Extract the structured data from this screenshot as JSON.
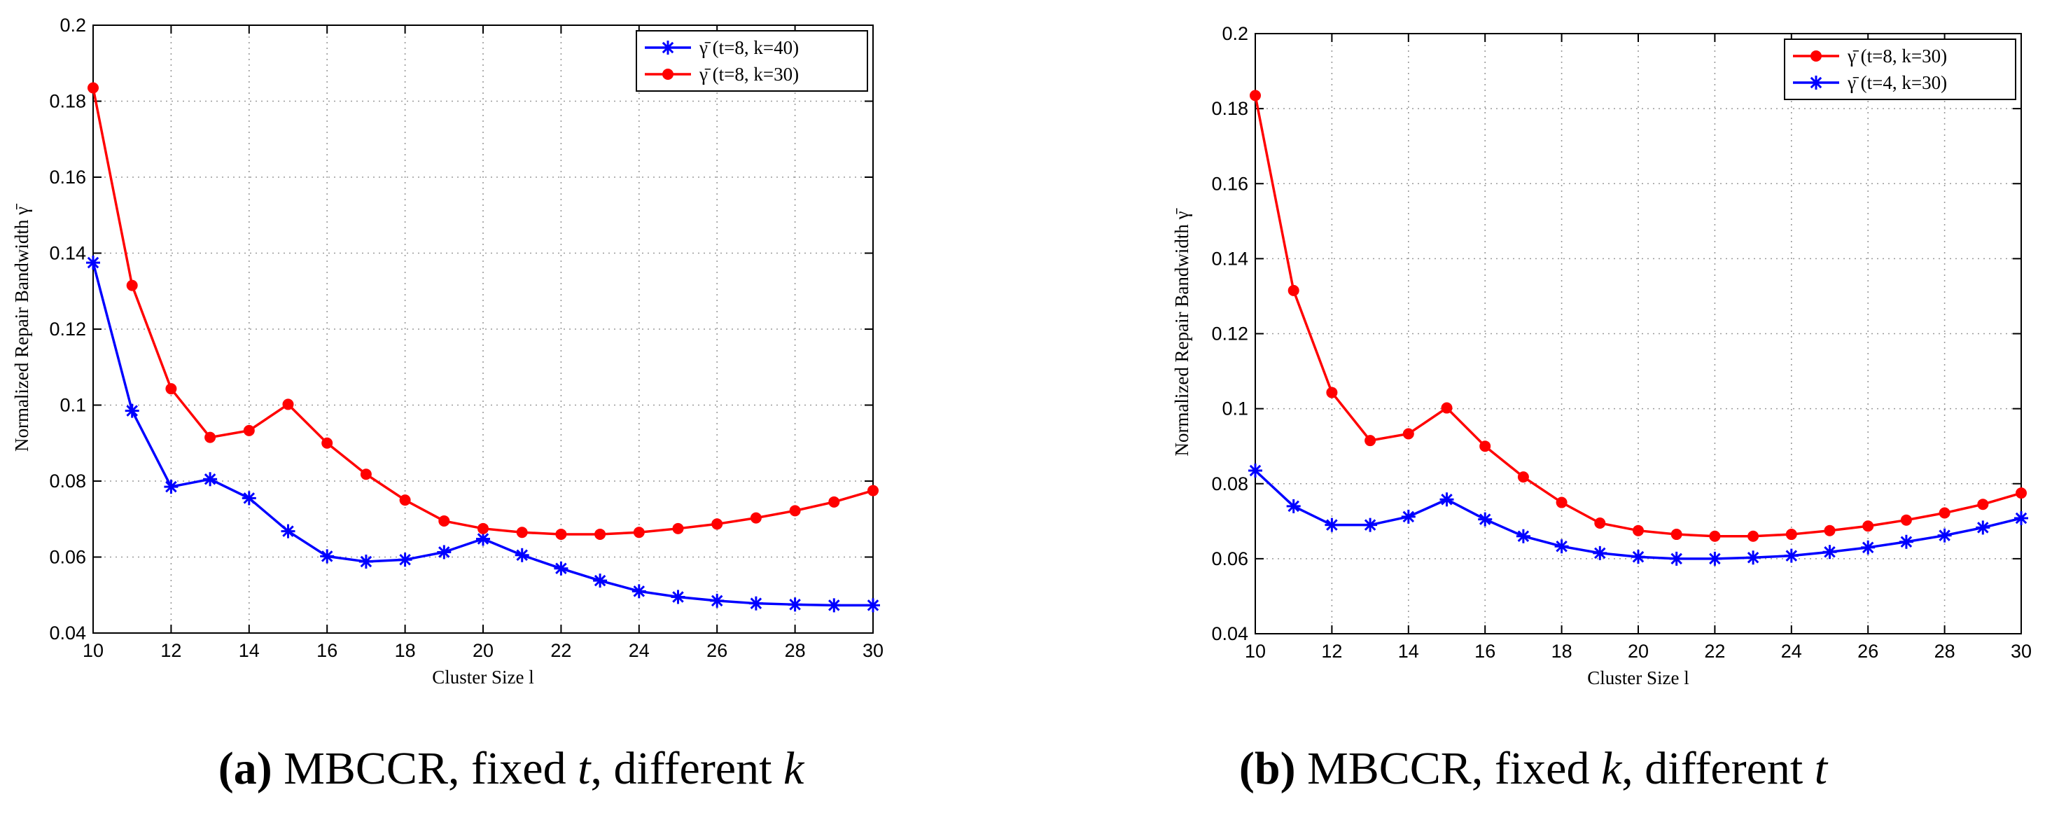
{
  "chart_data": [
    {
      "id": "a",
      "type": "line",
      "caption": {
        "letter": "(a)",
        "text_before": "MBCCR, fixed",
        "var1": "t",
        "text_middle": ", different",
        "var2": "k"
      },
      "xlabel": "Cluster Size l",
      "ylabel": "Normalized Repair Bandwidth γ̄",
      "xlim": [
        10,
        30
      ],
      "ylim": [
        0.04,
        0.2
      ],
      "xticks": [
        "10",
        "12",
        "14",
        "16",
        "18",
        "20",
        "22",
        "24",
        "26",
        "28",
        "30"
      ],
      "yticks": [
        "0.04",
        "0.06",
        "0.08",
        "0.1",
        "0.12",
        "0.14",
        "0.16",
        "0.18",
        "0.2"
      ],
      "grid": true,
      "legend_position": "top-right",
      "x": [
        10,
        11,
        12,
        13,
        14,
        15,
        16,
        17,
        18,
        19,
        20,
        21,
        22,
        23,
        24,
        25,
        26,
        27,
        28,
        29,
        30
      ],
      "series": [
        {
          "name": "γ̄ (t=8, k=40)",
          "color": "#0000ff",
          "marker": "asterisk",
          "values": [
            0.1375,
            0.0985,
            0.0785,
            0.0805,
            0.0755,
            0.0668,
            0.0602,
            0.0588,
            0.0593,
            0.0613,
            0.0648,
            0.0605,
            0.057,
            0.0538,
            0.051,
            0.0495,
            0.0485,
            0.0478,
            0.0475,
            0.0473,
            0.0473
          ]
        },
        {
          "name": "γ̄ (t=8, k=30)",
          "color": "#ff0000",
          "marker": "dot",
          "values": [
            0.1835,
            0.1315,
            0.1043,
            0.0915,
            0.0933,
            0.1002,
            0.09,
            0.0818,
            0.075,
            0.0695,
            0.0675,
            0.0665,
            0.066,
            0.066,
            0.0665,
            0.0675,
            0.0687,
            0.0703,
            0.0722,
            0.0745,
            0.0775
          ]
        }
      ]
    },
    {
      "id": "b",
      "type": "line",
      "caption": {
        "letter": "(b)",
        "text_before": "MBCCR, fixed",
        "var1": "k",
        "text_middle": ", different",
        "var2": "t"
      },
      "xlabel": "Cluster Size l",
      "ylabel": "Normalized Repair Bandwidth γ̄",
      "xlim": [
        10,
        30
      ],
      "ylim": [
        0.04,
        0.2
      ],
      "xticks": [
        "10",
        "12",
        "14",
        "16",
        "18",
        "20",
        "22",
        "24",
        "26",
        "28",
        "30"
      ],
      "yticks": [
        "0.04",
        "0.06",
        "0.08",
        "0.1",
        "0.12",
        "0.14",
        "0.16",
        "0.18",
        "0.2"
      ],
      "grid": true,
      "legend_position": "top-right",
      "x": [
        10,
        11,
        12,
        13,
        14,
        15,
        16,
        17,
        18,
        19,
        20,
        21,
        22,
        23,
        24,
        25,
        26,
        27,
        28,
        29,
        30
      ],
      "series": [
        {
          "name": "γ̄ (t=8, k=30)",
          "color": "#ff0000",
          "marker": "dot",
          "values": [
            0.1835,
            0.1315,
            0.1043,
            0.0915,
            0.0933,
            0.1002,
            0.09,
            0.0818,
            0.075,
            0.0695,
            0.0675,
            0.0665,
            0.066,
            0.066,
            0.0665,
            0.0675,
            0.0687,
            0.0703,
            0.0722,
            0.0745,
            0.0775
          ]
        },
        {
          "name": "γ̄ (t=4, k=30)",
          "color": "#0000ff",
          "marker": "asterisk",
          "values": [
            0.0835,
            0.074,
            0.069,
            0.069,
            0.0712,
            0.0758,
            0.0705,
            0.066,
            0.0633,
            0.0615,
            0.0605,
            0.06,
            0.06,
            0.0603,
            0.0608,
            0.0618,
            0.063,
            0.0645,
            0.0662,
            0.0683,
            0.0708
          ]
        }
      ]
    }
  ]
}
